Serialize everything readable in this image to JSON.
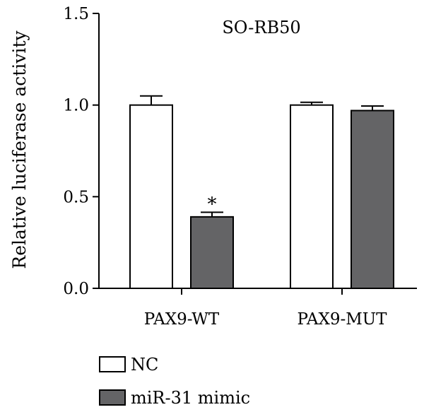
{
  "colors": {
    "nc_fill": "#ffffff",
    "mimic_fill": "#646466",
    "stroke": "#000000",
    "background": "#ffffff"
  },
  "chart_data": {
    "type": "bar",
    "title": "SO-RB50",
    "xlabel": "",
    "ylabel": "Relative luciferase activity",
    "ylim": [
      0,
      1.5
    ],
    "yticks": [
      "0.0",
      "0.5",
      "1.0",
      "1.5"
    ],
    "categories": [
      "PAX9-WT",
      "PAX9-MUT"
    ],
    "series": [
      {
        "name": "NC",
        "values": [
          1.0,
          1.0
        ],
        "errors": [
          0.05,
          0.015
        ]
      },
      {
        "name": "miR-31 mimic",
        "values": [
          0.39,
          0.97
        ],
        "errors": [
          0.025,
          0.025
        ]
      }
    ],
    "annotations": [
      {
        "text": "*",
        "category": "PAX9-WT",
        "series": "miR-31 mimic"
      }
    ],
    "legend_position": "bottom-left"
  }
}
